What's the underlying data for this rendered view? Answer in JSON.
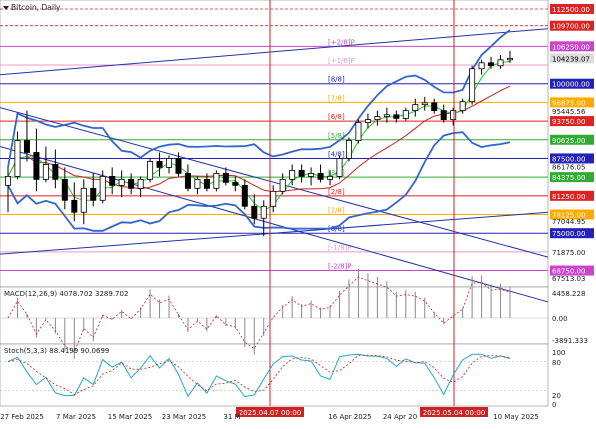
{
  "header": {
    "symbol_label": "Bitcoin, Daily"
  },
  "macd_label": "MACD(12,26,9) 4078.702 3289.702",
  "stoch_label": "Stoch(5,3,3) 88.4199 90.0699",
  "price_scale": [
    "106250.00",
    "104239.07",
    "100000.00",
    "96875.00",
    "95445.56",
    "93750.00",
    "90625.00",
    "87500.00",
    "86176.05",
    "84375.00",
    "81250.00",
    "78125.00",
    "77044.95",
    "75000.00",
    "71875.00",
    "68750.00",
    "67513.03"
  ],
  "murrey_levels": [
    {
      "label": "[+2/8]P",
      "price": 106250,
      "color": "#cc44cc",
      "tag": "106250.00"
    },
    {
      "label": "[+1/8]P",
      "price": 103125,
      "color": "#ee99cc",
      "tag": ""
    },
    {
      "label": "[8/8]",
      "price": 100000,
      "color": "#2222bb",
      "tag": "100000.00"
    },
    {
      "label": "[7/8]",
      "price": 96875,
      "color": "#ffaa00",
      "tag": "96875.00"
    },
    {
      "label": "[6/8]",
      "price": 93750,
      "color": "#dd2222",
      "tag": "93750.00"
    },
    {
      "label": "[5/8]",
      "price": 90625,
      "color": "#33aa33",
      "tag": "90625.00"
    },
    {
      "label": "[4/8]",
      "price": 87500,
      "color": "#2222bb",
      "tag": "87500.00"
    },
    {
      "label": "[3/8]",
      "price": 84375,
      "color": "#33aa33",
      "tag": "84375.00"
    },
    {
      "label": "[2/8]",
      "price": 81250,
      "color": "#dd2222",
      "tag": "81250.00"
    },
    {
      "label": "[1/8]",
      "price": 78125,
      "color": "#ffaa00",
      "tag": "78125.00"
    },
    {
      "label": "[0/8]",
      "price": 75000,
      "color": "#2222bb",
      "tag": "75000.00"
    },
    {
      "label": "[-1/8]P",
      "price": 71875,
      "color": "#ee99cc",
      "tag": ""
    },
    {
      "label": "[-2/8]P",
      "price": 68750,
      "color": "#cc44cc",
      "tag": "68750.00"
    }
  ],
  "red_levels": [
    {
      "price": 112500,
      "tag": "112500.00"
    },
    {
      "price": 109700,
      "tag": "109700.00"
    }
  ],
  "current_price": {
    "price": 104239.07,
    "tag": "104239.07"
  },
  "vertical_markers": [
    {
      "label": "2025.04.07 00:00"
    },
    {
      "label": "2025.05.04 00:00"
    }
  ],
  "x_ticks": [
    "27 Feb 2025",
    "7 Mar 2025",
    "15 Mar 2025",
    "23 Mar 2025",
    "31 M",
    "16 Apr 2025",
    "24 Apr 20",
    "10 May 2025"
  ],
  "macd_scale": [
    "4458.228",
    "0.00",
    "-3891.333"
  ],
  "stoch_scale": [
    "100",
    "80",
    "20",
    "0"
  ],
  "chart_data": {
    "type": "candlestick",
    "title": "Bitcoin, Daily",
    "ylim": [
      66000,
      114000
    ],
    "candles": [
      {
        "o": 83000,
        "h": 86000,
        "l": 78500,
        "c": 84500
      },
      {
        "o": 84500,
        "h": 92000,
        "l": 84000,
        "c": 90500
      },
      {
        "o": 90500,
        "h": 95500,
        "l": 87000,
        "c": 88500
      },
      {
        "o": 88500,
        "h": 92500,
        "l": 82000,
        "c": 84000
      },
      {
        "o": 84000,
        "h": 89500,
        "l": 83500,
        "c": 86500
      },
      {
        "o": 86500,
        "h": 89000,
        "l": 82500,
        "c": 84000
      },
      {
        "o": 84000,
        "h": 86000,
        "l": 79000,
        "c": 80500
      },
      {
        "o": 80500,
        "h": 83500,
        "l": 77000,
        "c": 78500
      },
      {
        "o": 78500,
        "h": 84000,
        "l": 76500,
        "c": 82500
      },
      {
        "o": 82500,
        "h": 85000,
        "l": 79500,
        "c": 80500
      },
      {
        "o": 80500,
        "h": 85500,
        "l": 80000,
        "c": 84500
      },
      {
        "o": 84500,
        "h": 86000,
        "l": 81500,
        "c": 83000
      },
      {
        "o": 83000,
        "h": 85500,
        "l": 81000,
        "c": 84000
      },
      {
        "o": 84000,
        "h": 85000,
        "l": 81500,
        "c": 82500
      },
      {
        "o": 82500,
        "h": 84500,
        "l": 81000,
        "c": 84000
      },
      {
        "o": 84000,
        "h": 87500,
        "l": 83500,
        "c": 87000
      },
      {
        "o": 87000,
        "h": 88500,
        "l": 84500,
        "c": 86000
      },
      {
        "o": 86000,
        "h": 88000,
        "l": 85000,
        "c": 87500
      },
      {
        "o": 87500,
        "h": 88500,
        "l": 84500,
        "c": 85000
      },
      {
        "o": 85000,
        "h": 86500,
        "l": 82000,
        "c": 82500
      },
      {
        "o": 82500,
        "h": 84500,
        "l": 81500,
        "c": 84000
      },
      {
        "o": 84000,
        "h": 85000,
        "l": 82000,
        "c": 82500
      },
      {
        "o": 82500,
        "h": 85500,
        "l": 82000,
        "c": 85000
      },
      {
        "o": 85000,
        "h": 86000,
        "l": 83000,
        "c": 83500
      },
      {
        "o": 83500,
        "h": 84500,
        "l": 82000,
        "c": 83000
      },
      {
        "o": 83000,
        "h": 84000,
        "l": 79000,
        "c": 79500
      },
      {
        "o": 79500,
        "h": 81500,
        "l": 76500,
        "c": 77500
      },
      {
        "o": 77500,
        "h": 80500,
        "l": 74500,
        "c": 79500
      },
      {
        "o": 79500,
        "h": 83000,
        "l": 78500,
        "c": 82000
      },
      {
        "o": 82000,
        "h": 85000,
        "l": 81500,
        "c": 84000
      },
      {
        "o": 84000,
        "h": 86500,
        "l": 83000,
        "c": 85500
      },
      {
        "o": 85500,
        "h": 86500,
        "l": 83500,
        "c": 84500
      },
      {
        "o": 84500,
        "h": 86000,
        "l": 83000,
        "c": 85000
      },
      {
        "o": 85000,
        "h": 86500,
        "l": 83500,
        "c": 84000
      },
      {
        "o": 84000,
        "h": 85500,
        "l": 83000,
        "c": 84500
      },
      {
        "o": 84500,
        "h": 88000,
        "l": 84000,
        "c": 87500
      },
      {
        "o": 87500,
        "h": 91000,
        "l": 87000,
        "c": 90500
      },
      {
        "o": 90500,
        "h": 94000,
        "l": 90000,
        "c": 93500
      },
      {
        "o": 93500,
        "h": 95000,
        "l": 92500,
        "c": 94000
      },
      {
        "o": 94000,
        "h": 95500,
        "l": 93000,
        "c": 94500
      },
      {
        "o": 94500,
        "h": 96000,
        "l": 93500,
        "c": 94800
      },
      {
        "o": 94800,
        "h": 95500,
        "l": 93500,
        "c": 94200
      },
      {
        "o": 94200,
        "h": 96000,
        "l": 93800,
        "c": 95500
      },
      {
        "o": 95500,
        "h": 97500,
        "l": 94500,
        "c": 96500
      },
      {
        "o": 96500,
        "h": 97800,
        "l": 95500,
        "c": 96800
      },
      {
        "o": 96800,
        "h": 97500,
        "l": 95000,
        "c": 95500
      },
      {
        "o": 95500,
        "h": 96500,
        "l": 93500,
        "c": 94000
      },
      {
        "o": 94000,
        "h": 96000,
        "l": 93000,
        "c": 95500
      },
      {
        "o": 95500,
        "h": 97500,
        "l": 95000,
        "c": 97000
      },
      {
        "o": 97000,
        "h": 103000,
        "l": 96500,
        "c": 102500
      },
      {
        "o": 102500,
        "h": 104000,
        "l": 101500,
        "c": 103500
      },
      {
        "o": 103500,
        "h": 104500,
        "l": 102500,
        "c": 103000
      },
      {
        "o": 103000,
        "h": 104800,
        "l": 102500,
        "c": 104000
      },
      {
        "o": 104000,
        "h": 105500,
        "l": 103500,
        "c": 104239
      }
    ]
  }
}
